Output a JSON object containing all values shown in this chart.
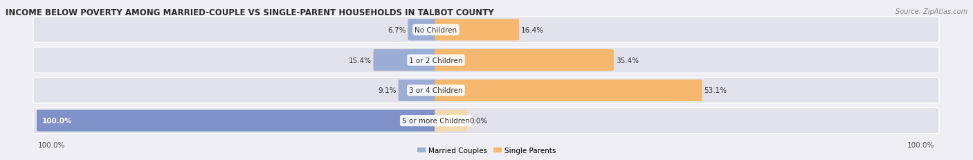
{
  "title": "INCOME BELOW POVERTY AMONG MARRIED-COUPLE VS SINGLE-PARENT HOUSEHOLDS IN TALBOT COUNTY",
  "source": "Source: ZipAtlas.com",
  "categories": [
    "No Children",
    "1 or 2 Children",
    "3 or 4 Children",
    "5 or more Children"
  ],
  "married_values": [
    6.7,
    15.4,
    9.1,
    100.0
  ],
  "single_values": [
    16.4,
    35.4,
    53.1,
    0.0
  ],
  "married_color": "#9badd4",
  "single_color": "#f5b86e",
  "married_color_100": "#8090c8",
  "single_color_faint": "#f5d9ae",
  "married_label": "Married Couples",
  "single_label": "Single Parents",
  "bg_color": "#eeeef4",
  "bar_bg_color": "#e2e2ea",
  "row_sep_color": "#d0d0da",
  "title_fontsize": 8.5,
  "source_fontsize": 7.0,
  "label_fontsize": 7.5,
  "cat_fontsize": 7.5,
  "axis_label": "100.0%",
  "max_val": 100.0
}
